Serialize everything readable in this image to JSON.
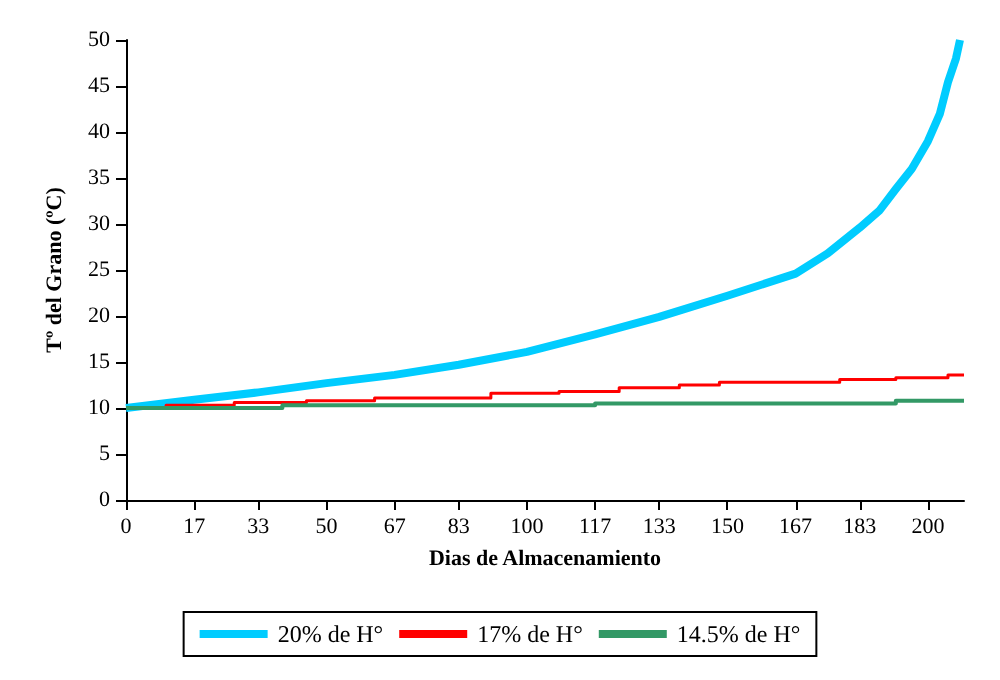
{
  "chart_data": {
    "type": "line",
    "xlabel": "Dias de Almacenamiento",
    "ylabel": "Tº del Grano (ºC)",
    "xlim": [
      0,
      209
    ],
    "ylim": [
      0,
      50
    ],
    "xticks": [
      0,
      17,
      33,
      50,
      67,
      83,
      100,
      117,
      133,
      150,
      167,
      183,
      200
    ],
    "yticks": [
      0,
      5,
      10,
      15,
      20,
      25,
      30,
      35,
      40,
      45,
      50
    ],
    "grid": false,
    "legend": "bottom",
    "marker": "none",
    "series": [
      {
        "name": "20% de H°",
        "color": "#00ccff",
        "x": [
          0,
          17,
          33,
          50,
          67,
          83,
          100,
          117,
          133,
          150,
          167,
          175,
          183,
          188,
          192,
          196,
          200,
          203,
          205,
          207,
          208
        ],
        "values": [
          10,
          10.9,
          11.7,
          12.7,
          13.6,
          14.7,
          16.1,
          18,
          19.9,
          22.2,
          24.6,
          26.8,
          29.6,
          31.5,
          33.8,
          36,
          39,
          42,
          45.4,
          48,
          50
        ]
      },
      {
        "name": "17% de H°",
        "color": "#ff0000",
        "type": "step",
        "x": [
          0,
          10,
          27,
          45,
          62,
          91,
          108,
          123,
          138,
          148,
          178,
          192,
          205,
          209
        ],
        "values": [
          10,
          10.3,
          10.6,
          10.8,
          11.1,
          11.6,
          11.8,
          12.2,
          12.5,
          12.8,
          13.1,
          13.3,
          13.6,
          13.6
        ]
      },
      {
        "name": "14.5% de H°",
        "color": "#339966",
        "type": "step",
        "x": [
          0,
          39,
          117,
          192,
          209
        ],
        "values": [
          10,
          10.3,
          10.5,
          10.8,
          10.8
        ]
      }
    ]
  }
}
